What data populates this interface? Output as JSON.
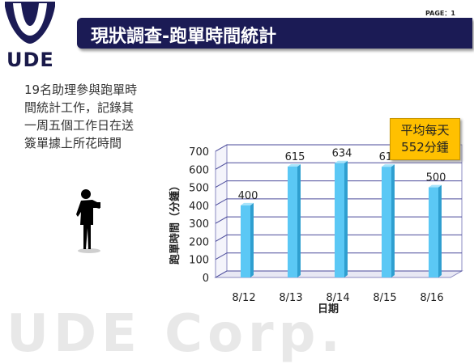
{
  "page": {
    "logo_text": "UDE",
    "title": "現狀調查-跑單時間統計",
    "page_label": "PAGE：1",
    "description_lines": [
      "19名助理參與跑單時",
      "間統計工作，記錄其",
      "一周五個工作日在送",
      "簽單據上所花時間"
    ],
    "callout_lines": [
      "平均每天",
      "552分鍾"
    ],
    "watermark": "UDE Corp."
  },
  "chart_data": {
    "type": "bar",
    "categories": [
      "8/12",
      "8/13",
      "8/14",
      "8/15",
      "8/16"
    ],
    "values": [
      400,
      615,
      634,
      614,
      500
    ],
    "xlabel": "日期",
    "ylabel": "跑單時間（分鍾）",
    "ylim": [
      0,
      700
    ],
    "yticks": [
      0,
      100,
      200,
      300,
      400,
      500,
      600,
      700
    ],
    "grid": true,
    "colors": {
      "bar_front": "#5bc8f5",
      "bar_side": "#2f9fd0",
      "bar_top": "#a8e4fb",
      "grid": "#4a4a9a"
    }
  }
}
